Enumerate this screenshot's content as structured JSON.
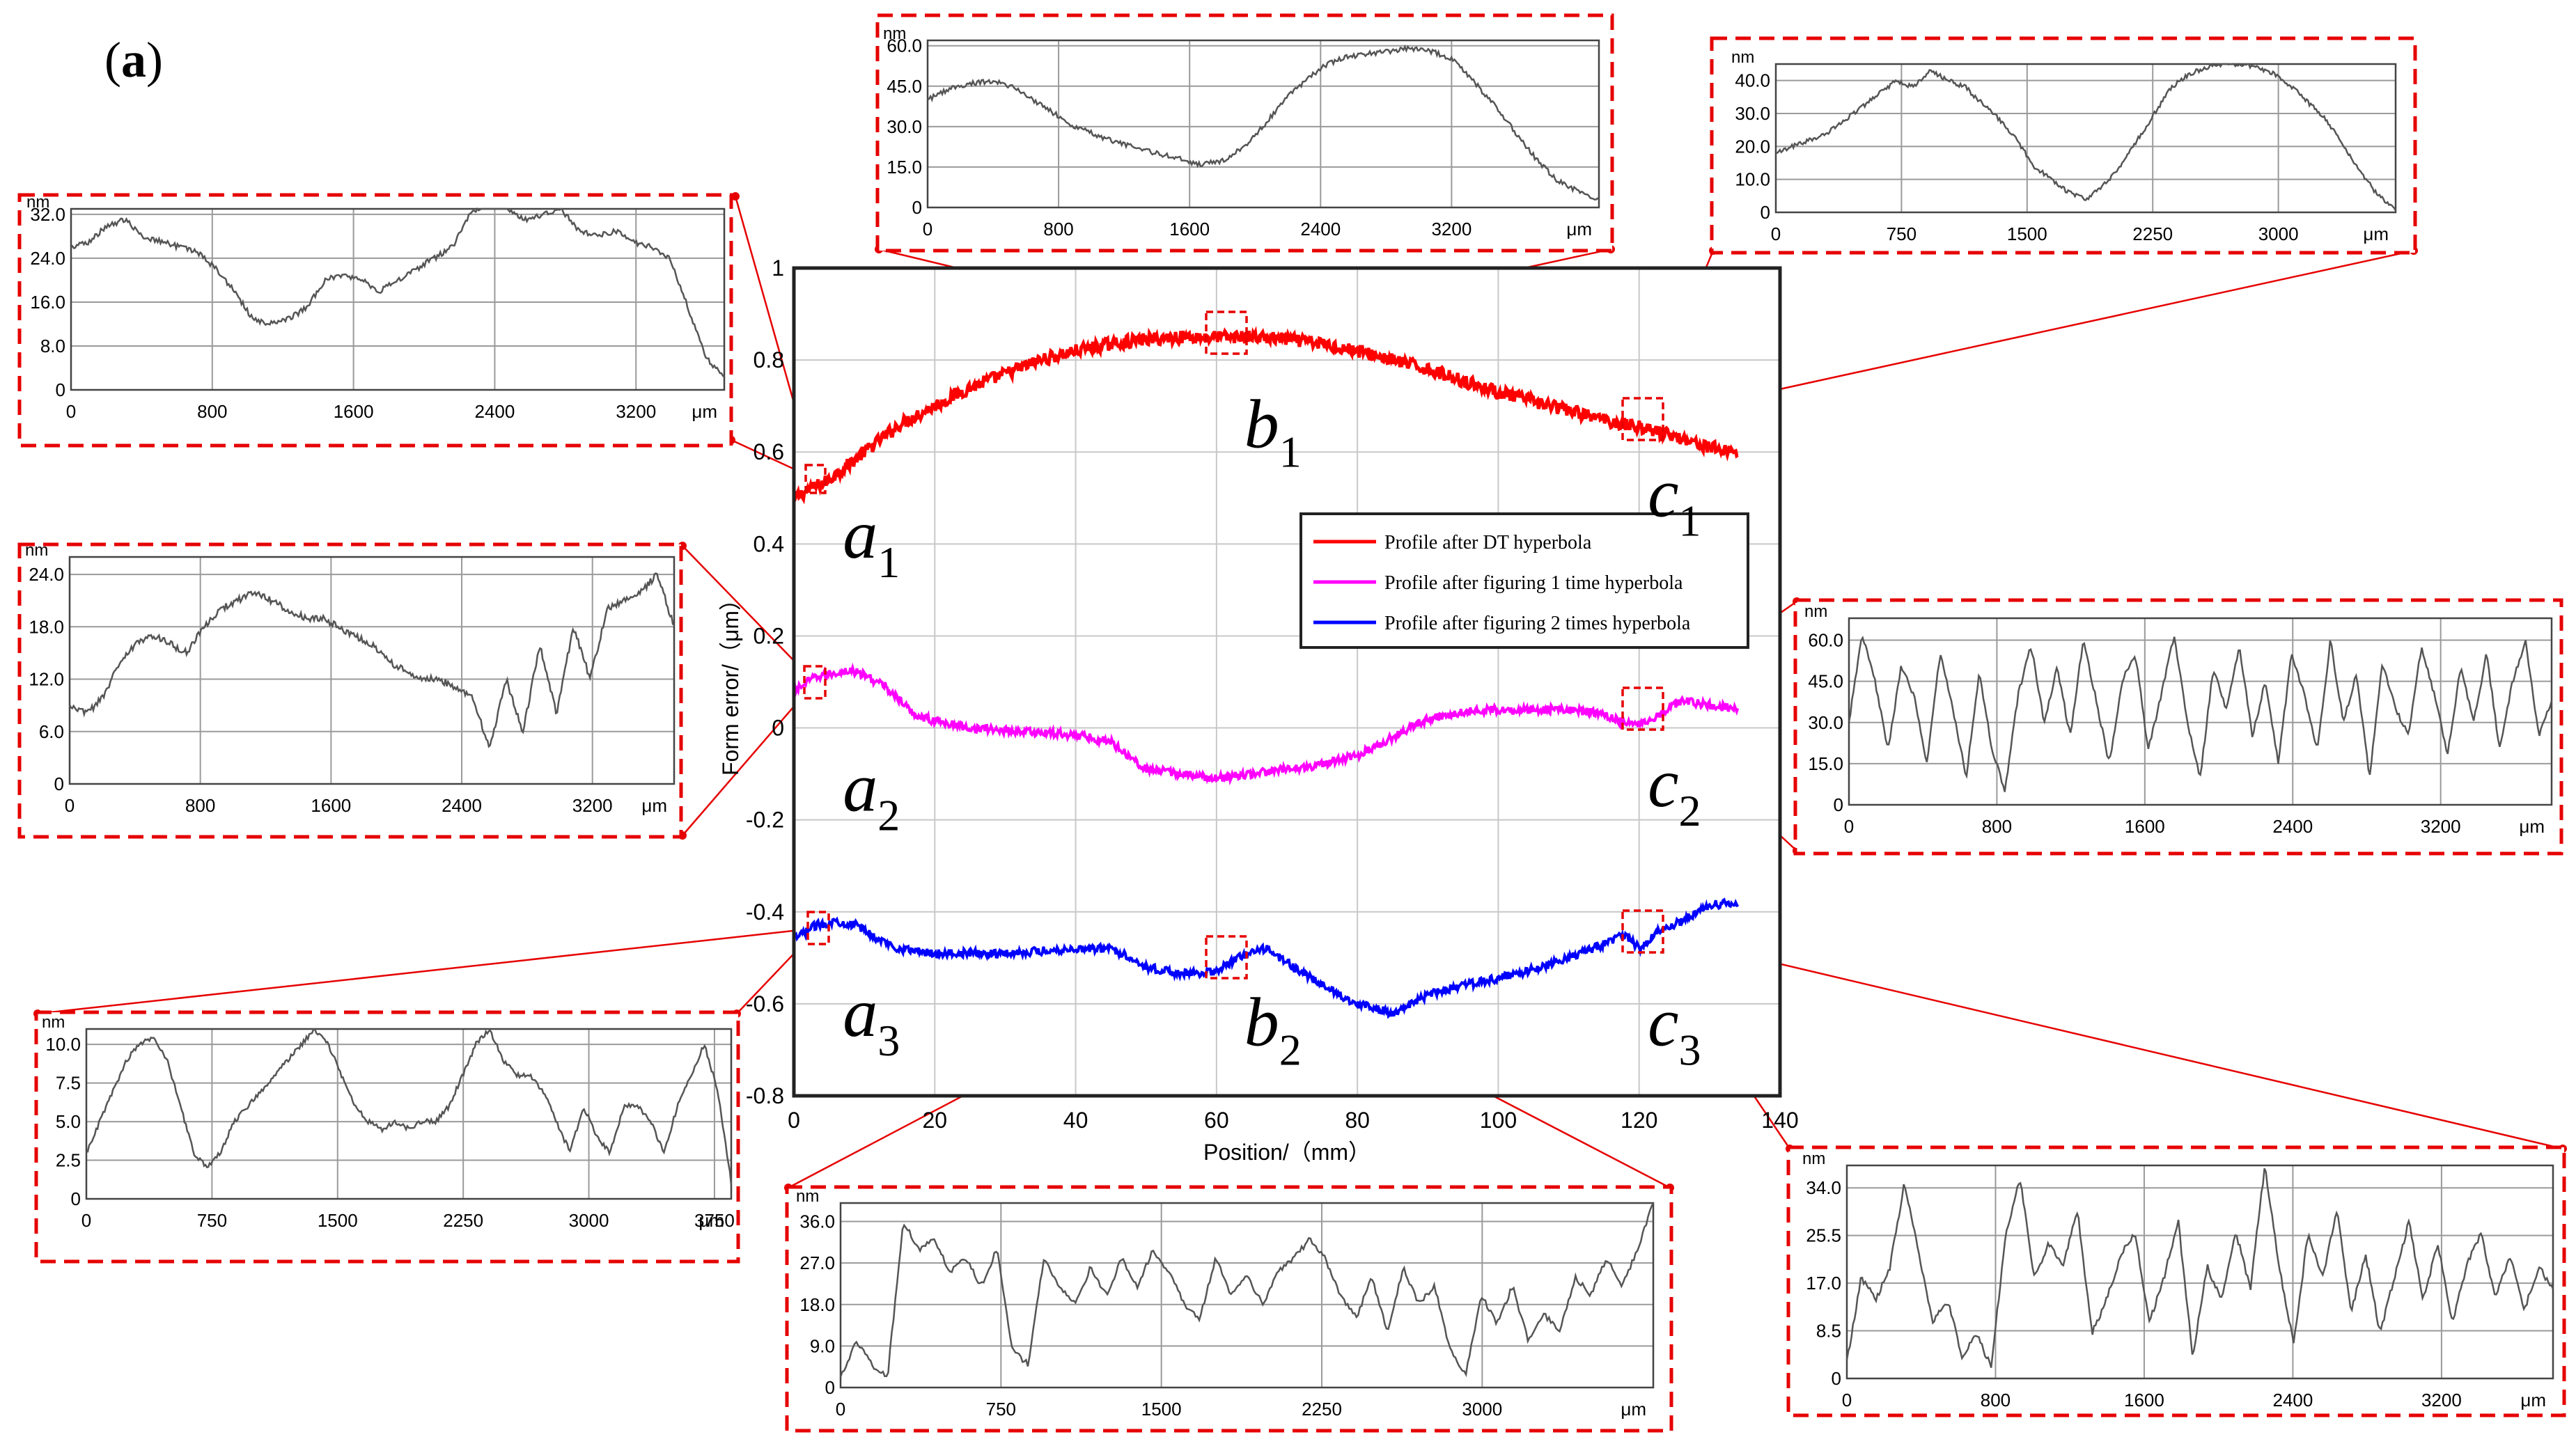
{
  "figure": {
    "panel_label": "a"
  },
  "colors": {
    "dt": "#ff0000",
    "fig1": "#ff00ff",
    "fig2": "#0000ff",
    "callout": "#e60000",
    "inset_line": "#555555",
    "grid": "#c8c8c8"
  },
  "chart_data": [
    {
      "id": "main",
      "type": "line",
      "xlabel": "Position/（mm）",
      "ylabel": "Form error/（μm）",
      "xlim": [
        0,
        140
      ],
      "ylim": [
        -0.8,
        1.0
      ],
      "xticks": [
        0,
        20,
        40,
        60,
        80,
        100,
        120,
        140
      ],
      "yticks": [
        -0.8,
        -0.6,
        -0.4,
        -0.2,
        0,
        0.2,
        0.4,
        0.6,
        0.8,
        1
      ],
      "ytick_labels": [
        "-0.8",
        "-0.6",
        "-0.4",
        "-0.2",
        "0",
        "0.2",
        "0.4",
        "0.6",
        "0.8",
        "1"
      ],
      "grid": true,
      "legend_position": "center-right",
      "series": [
        {
          "name": "Profile after DT hyperbola",
          "color": "#ff0000",
          "x": [
            0,
            5,
            10,
            15,
            20,
            25,
            30,
            35,
            40,
            45,
            50,
            55,
            60,
            65,
            70,
            75,
            80,
            85,
            90,
            95,
            100,
            105,
            110,
            115,
            120,
            125,
            130,
            134
          ],
          "y": [
            0.5,
            0.54,
            0.6,
            0.66,
            0.7,
            0.74,
            0.77,
            0.8,
            0.82,
            0.835,
            0.845,
            0.85,
            0.85,
            0.85,
            0.845,
            0.835,
            0.82,
            0.8,
            0.78,
            0.755,
            0.73,
            0.71,
            0.69,
            0.67,
            0.655,
            0.635,
            0.61,
            0.6
          ]
        },
        {
          "name": "Profile after figuring 1 time hyperbola",
          "color": "#ff00ff",
          "x": [
            0,
            3,
            6,
            8,
            10,
            13,
            15,
            17,
            20,
            25,
            30,
            35,
            40,
            45,
            48,
            50,
            55,
            60,
            65,
            70,
            75,
            80,
            85,
            90,
            95,
            100,
            105,
            110,
            115,
            118,
            120,
            123,
            126,
            130,
            134
          ],
          "y": [
            0.08,
            0.11,
            0.12,
            0.125,
            0.115,
            0.09,
            0.06,
            0.03,
            0.015,
            0.0,
            -0.005,
            -0.01,
            -0.015,
            -0.03,
            -0.065,
            -0.09,
            -0.1,
            -0.11,
            -0.1,
            -0.09,
            -0.08,
            -0.06,
            -0.02,
            0.02,
            0.035,
            0.04,
            0.04,
            0.04,
            0.03,
            0.01,
            0.01,
            0.03,
            0.06,
            0.05,
            0.04
          ]
        },
        {
          "name": "Profile after figuring 2 times hyperbola",
          "color": "#0000ff",
          "x": [
            0,
            3,
            6,
            9,
            12,
            15,
            20,
            25,
            30,
            35,
            40,
            45,
            48,
            50,
            55,
            60,
            63,
            67,
            70,
            75,
            80,
            85,
            88,
            90,
            95,
            100,
            105,
            110,
            115,
            118,
            120,
            123,
            126,
            130,
            134
          ],
          "y": [
            -0.46,
            -0.43,
            -0.42,
            -0.43,
            -0.46,
            -0.48,
            -0.49,
            -0.49,
            -0.49,
            -0.485,
            -0.48,
            -0.48,
            -0.5,
            -0.52,
            -0.535,
            -0.53,
            -0.5,
            -0.48,
            -0.51,
            -0.56,
            -0.6,
            -0.62,
            -0.6,
            -0.58,
            -0.56,
            -0.545,
            -0.525,
            -0.5,
            -0.47,
            -0.45,
            -0.48,
            -0.44,
            -0.42,
            -0.385,
            -0.38
          ]
        }
      ],
      "region_labels": [
        {
          "main": "a",
          "sub": "1",
          "x": 11,
          "y": 0.37
        },
        {
          "main": "b",
          "sub": "1",
          "x": 68,
          "y": 0.61
        },
        {
          "main": "c",
          "sub": "1",
          "x": 125,
          "y": 0.46
        },
        {
          "main": "a",
          "sub": "2",
          "x": 11,
          "y": -0.18
        },
        {
          "main": "c",
          "sub": "2",
          "x": 125,
          "y": -0.17
        },
        {
          "main": "a",
          "sub": "3",
          "x": 11,
          "y": -0.67
        },
        {
          "main": "b",
          "sub": "2",
          "x": 68,
          "y": -0.69
        },
        {
          "main": "c",
          "sub": "3",
          "x": 125,
          "y": -0.69
        }
      ]
    },
    {
      "id": "inset-a1",
      "type": "line",
      "ylabel": "nm",
      "xlabel": "μm",
      "xlim": [
        0,
        3700
      ],
      "ylim": [
        0,
        33
      ],
      "xticks": [
        0,
        800,
        1600,
        2400,
        3200
      ],
      "yticks": [
        0,
        8.0,
        16.0,
        24.0,
        32.0
      ],
      "ytick_labels": [
        "0",
        "8.0",
        "16.0",
        "24.0",
        "32.0"
      ],
      "y": [
        26,
        27,
        30,
        31,
        28,
        27,
        26,
        25,
        22,
        18,
        13,
        12,
        13,
        15,
        20,
        21,
        20,
        18,
        20,
        22,
        24,
        26,
        32,
        34,
        33,
        31,
        32,
        33,
        29,
        28,
        29,
        27,
        26,
        24,
        15,
        6,
        2
      ]
    },
    {
      "id": "inset-b1",
      "type": "line",
      "ylabel": "nm",
      "xlabel": "μm",
      "xlim": [
        0,
        4100
      ],
      "ylim": [
        0,
        62
      ],
      "xticks": [
        0,
        800,
        1600,
        2400,
        3200
      ],
      "yticks": [
        0,
        15.0,
        30.0,
        45.0,
        60.0
      ],
      "ytick_labels": [
        "0",
        "15.0",
        "30.0",
        "45.0",
        "60.0"
      ],
      "y": [
        40,
        44,
        46,
        47,
        45,
        40,
        35,
        30,
        27,
        24,
        22,
        20,
        18,
        16,
        17,
        22,
        30,
        40,
        47,
        53,
        56,
        57,
        58,
        59,
        58,
        55,
        47,
        38,
        28,
        18,
        10,
        6,
        3
      ]
    },
    {
      "id": "inset-c1",
      "type": "line",
      "ylabel": "nm",
      "xlabel": "μm",
      "xlim": [
        0,
        3700
      ],
      "ylim": [
        0,
        45
      ],
      "xticks": [
        0,
        750,
        1500,
        2250,
        3000
      ],
      "yticks": [
        0,
        10.0,
        20.0,
        30.0,
        40.0
      ],
      "ytick_labels": [
        "0",
        "10.0",
        "20.0",
        "30.0",
        "40.0"
      ],
      "y": [
        18,
        20,
        22,
        24,
        28,
        32,
        36,
        40,
        38,
        43,
        40,
        38,
        33,
        28,
        22,
        14,
        10,
        6,
        4,
        8,
        14,
        22,
        30,
        38,
        42,
        44,
        45,
        45,
        44,
        42,
        38,
        33,
        28,
        20,
        12,
        5,
        1
      ]
    },
    {
      "id": "inset-a2",
      "type": "line",
      "ylabel": "nm",
      "xlabel": "μm",
      "xlim": [
        0,
        3700
      ],
      "ylim": [
        0,
        26
      ],
      "xticks": [
        0,
        800,
        1600,
        2400,
        3200
      ],
      "yticks": [
        0,
        6.0,
        12.0,
        18.0,
        24.0
      ],
      "ytick_labels": [
        "0",
        "6.0",
        "12.0",
        "18.0",
        "24.0"
      ],
      "y": [
        9,
        8,
        10,
        14,
        16,
        17,
        16,
        15,
        18,
        20,
        21,
        22,
        21,
        20,
        19,
        19,
        18,
        17,
        16,
        14,
        13,
        12,
        12,
        11,
        10,
        4,
        12,
        6,
        16,
        8,
        18,
        12,
        20,
        21,
        22,
        24,
        18
      ]
    },
    {
      "id": "inset-c2",
      "type": "line",
      "ylabel": "nm",
      "xlabel": "μm",
      "xlim": [
        0,
        3800
      ],
      "ylim": [
        0,
        68
      ],
      "xticks": [
        0,
        800,
        1600,
        2400,
        3200
      ],
      "yticks": [
        0,
        15.0,
        30.0,
        45.0,
        60.0
      ],
      "ytick_labels": [
        "0",
        "15.0",
        "30.0",
        "45.0",
        "60.0"
      ],
      "y": [
        30,
        62,
        45,
        20,
        50,
        40,
        15,
        55,
        35,
        10,
        48,
        20,
        5,
        40,
        58,
        30,
        50,
        25,
        60,
        38,
        15,
        45,
        55,
        20,
        40,
        62,
        30,
        10,
        50,
        35,
        58,
        25,
        45,
        15,
        55,
        40,
        20,
        60,
        30,
        48,
        10,
        52,
        35,
        25,
        58,
        40,
        18,
        50,
        30,
        55,
        20,
        45,
        60,
        25,
        38
      ]
    },
    {
      "id": "inset-a3",
      "type": "line",
      "ylabel": "nm",
      "xlabel": "μm",
      "xlim": [
        0,
        3850
      ],
      "ylim": [
        0,
        11
      ],
      "xticks": [
        0,
        750,
        1500,
        2250,
        3000,
        3750
      ],
      "yticks": [
        0,
        2.5,
        5.0,
        7.5,
        10.0
      ],
      "ytick_labels": [
        "0",
        "2.5",
        "5.0",
        "7.5",
        "10.0"
      ],
      "y": [
        3,
        5,
        7,
        9,
        10,
        10.5,
        9,
        6,
        3,
        2,
        3,
        5,
        6,
        7,
        8,
        9,
        10,
        11,
        10,
        8,
        6,
        5,
        4.5,
        5,
        4.5,
        5,
        5,
        6,
        8,
        10,
        11,
        9,
        8,
        8,
        7,
        5,
        3,
        6,
        4,
        3,
        6,
        6,
        5,
        3,
        6,
        8,
        10,
        7,
        1
      ]
    },
    {
      "id": "inset-b2",
      "type": "line",
      "ylabel": "nm",
      "xlabel": "μm",
      "xlim": [
        0,
        3800
      ],
      "ylim": [
        0,
        40
      ],
      "xticks": [
        0,
        750,
        1500,
        2250,
        3000
      ],
      "yticks": [
        0,
        9.0,
        18.0,
        27.0,
        36.0
      ],
      "ytick_labels": [
        "0",
        "9.0",
        "18.0",
        "27.0",
        "36.0"
      ],
      "y": [
        2,
        10,
        5,
        2,
        36,
        30,
        32,
        25,
        28,
        22,
        30,
        8,
        5,
        28,
        22,
        18,
        26,
        20,
        28,
        22,
        30,
        25,
        18,
        15,
        28,
        20,
        24,
        18,
        25,
        28,
        32,
        28,
        20,
        15,
        24,
        12,
        26,
        18,
        22,
        8,
        3,
        20,
        14,
        22,
        10,
        16,
        12,
        24,
        20,
        28,
        22,
        30,
        40
      ]
    },
    {
      "id": "inset-c3",
      "type": "line",
      "ylabel": "nm",
      "xlabel": "μm",
      "xlim": [
        0,
        3800
      ],
      "ylim": [
        0,
        38
      ],
      "xticks": [
        0,
        800,
        1600,
        2400,
        3200
      ],
      "yticks": [
        0,
        8.5,
        17.0,
        25.5,
        34.0
      ],
      "ytick_labels": [
        "0",
        "8.5",
        "17.0",
        "25.5",
        "34.0"
      ],
      "y": [
        3,
        18,
        14,
        20,
        35,
        22,
        10,
        14,
        4,
        8,
        2,
        25,
        36,
        18,
        24,
        20,
        30,
        8,
        14,
        22,
        26,
        10,
        18,
        28,
        4,
        20,
        14,
        26,
        16,
        38,
        20,
        6,
        26,
        18,
        30,
        12,
        22,
        8,
        18,
        28,
        14,
        24,
        10,
        20,
        26,
        14,
        22,
        12,
        20,
        16
      ]
    }
  ]
}
